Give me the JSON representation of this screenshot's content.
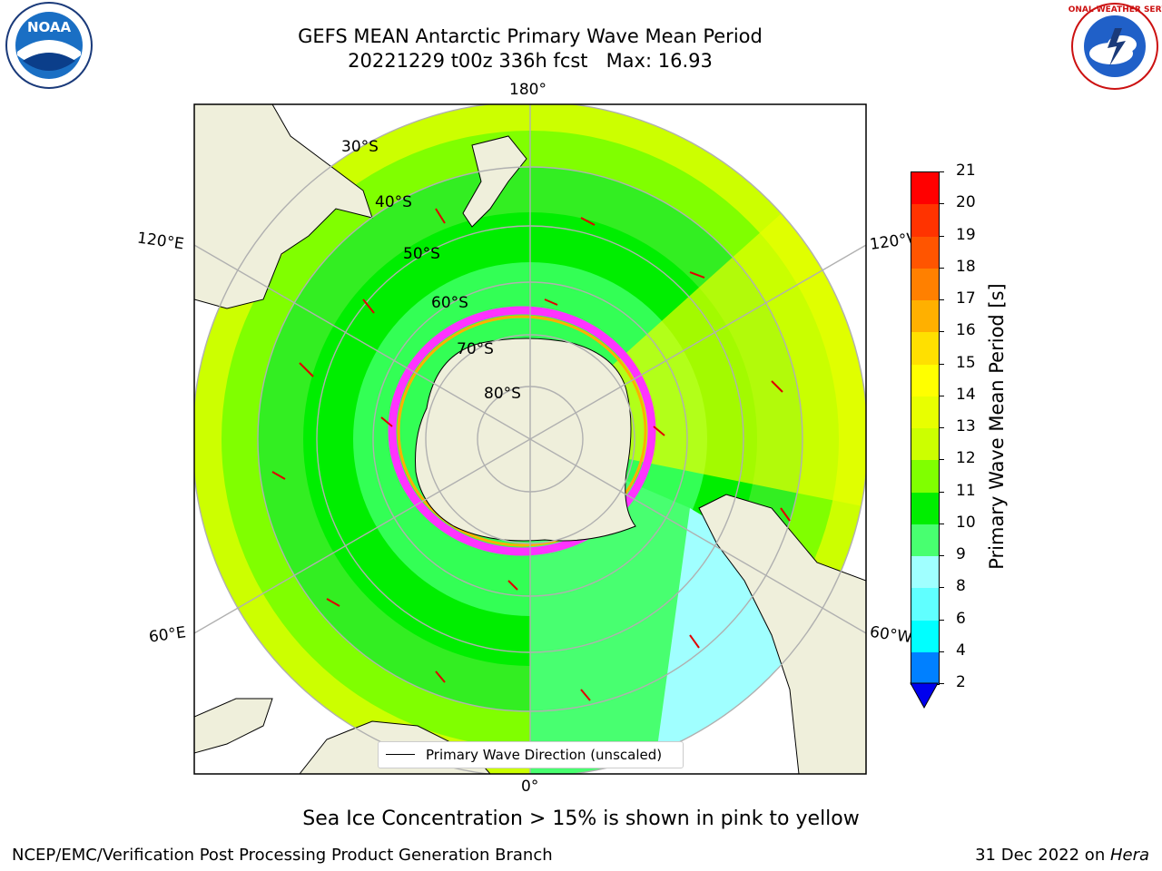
{
  "title_line1": "GEFS MEAN Antarctic Primary Wave Mean Period",
  "title_line2": "20221229 t00z 336h fcst   Max: 16.93",
  "lon_labels": {
    "top": "180°",
    "bottom": "0°",
    "upper_left": "120°E",
    "upper_right": "120°W",
    "lower_left": "60°E",
    "lower_right": "60°W"
  },
  "lat_labels": [
    "30°S",
    "40°S",
    "50°S",
    "60°S",
    "70°S",
    "80°S"
  ],
  "colorbar": {
    "label": "Primary Wave Mean Period [s]",
    "ticks": [
      "21",
      "20",
      "19",
      "18",
      "17",
      "16",
      "15",
      "14",
      "13",
      "12",
      "11",
      "10",
      "9",
      "8",
      "6",
      "4",
      "2"
    ],
    "colors": [
      "#ff0000",
      "#ff3300",
      "#ff5500",
      "#ff8000",
      "#ffb000",
      "#ffe000",
      "#ffff00",
      "#e8ff00",
      "#ccff00",
      "#80ff00",
      "#00ee00",
      "#48ff70",
      "#a0ffff",
      "#60ffff",
      "#00ffff",
      "#0080ff",
      "#0000ee"
    ]
  },
  "legend_text": "Primary Wave Direction (unscaled)",
  "caption": "Sea Ice Concentration > 15% is shown in pink to yellow",
  "footer_left": "NCEP/EMC/Verification Post Processing Product Generation Branch",
  "footer_right_date": "31 Dec 2022 on ",
  "footer_right_machine": "Hera",
  "logos": {
    "left": "NOAA",
    "right": "NATIONAL WEATHER SERVICE"
  }
}
